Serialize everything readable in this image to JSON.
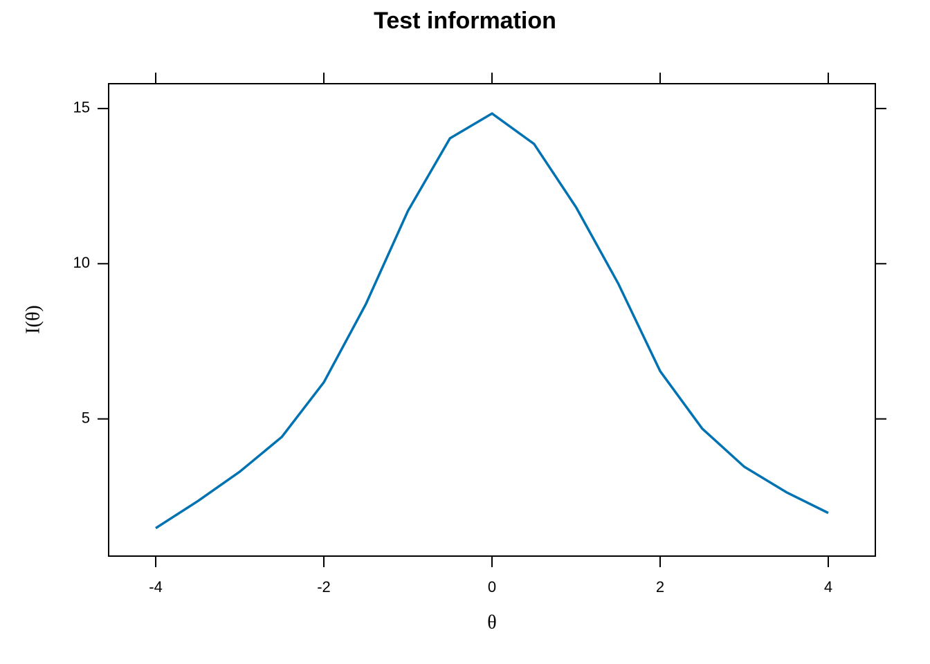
{
  "chart_data": {
    "type": "line",
    "title": "Test information",
    "xlabel": "θ",
    "ylabel": "I(θ)",
    "x": [
      -4,
      -3.5,
      -3,
      -2.5,
      -2,
      -1.5,
      -1,
      -0.5,
      0,
      0.5,
      1,
      1.5,
      2,
      2.5,
      3,
      3.5,
      4
    ],
    "series": [
      {
        "color": "#0072b2",
        "values": [
          1.48,
          2.35,
          3.3,
          4.42,
          6.18,
          8.7,
          11.7,
          14.04,
          14.84,
          13.86,
          11.82,
          9.37,
          6.54,
          4.69,
          3.46,
          2.64,
          1.97
        ]
      }
    ],
    "xlim": [
      -4.56,
      4.56
    ],
    "ylim": [
      0.58,
      15.8
    ],
    "xticks": [
      -4,
      -2,
      0,
      2,
      4
    ],
    "yticks": [
      5,
      10,
      15
    ],
    "grid": false
  }
}
